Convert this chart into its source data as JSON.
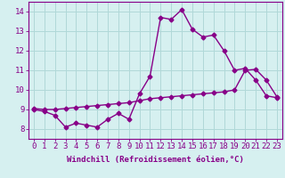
{
  "title": "",
  "xlabel": "Windchill (Refroidissement éolien,°C)",
  "ylabel": "",
  "bg_color": "#d6f0f0",
  "line_color": "#880088",
  "grid_color": "#b0d8d8",
  "xlim": [
    -0.5,
    23.5
  ],
  "ylim": [
    7.5,
    14.5
  ],
  "yticks": [
    8,
    9,
    10,
    11,
    12,
    13,
    14
  ],
  "xticks": [
    0,
    1,
    2,
    3,
    4,
    5,
    6,
    7,
    8,
    9,
    10,
    11,
    12,
    13,
    14,
    15,
    16,
    17,
    18,
    19,
    20,
    21,
    22,
    23
  ],
  "line1_x": [
    0,
    1,
    2,
    3,
    4,
    5,
    6,
    7,
    8,
    9,
    10,
    11,
    12,
    13,
    14,
    15,
    16,
    17,
    18,
    19,
    20,
    21,
    22,
    23
  ],
  "line1_y": [
    9.0,
    8.9,
    8.7,
    8.1,
    8.3,
    8.2,
    8.1,
    8.5,
    8.8,
    8.5,
    9.8,
    10.7,
    13.7,
    13.6,
    14.1,
    13.1,
    12.7,
    12.8,
    12.0,
    11.0,
    11.1,
    10.5,
    9.7,
    9.6
  ],
  "line2_x": [
    0,
    1,
    2,
    3,
    4,
    5,
    6,
    7,
    8,
    9,
    10,
    11,
    12,
    13,
    14,
    15,
    16,
    17,
    18,
    19,
    20,
    21,
    22,
    23
  ],
  "line2_y": [
    9.05,
    9.0,
    9.0,
    9.05,
    9.1,
    9.15,
    9.2,
    9.25,
    9.3,
    9.35,
    9.45,
    9.55,
    9.6,
    9.65,
    9.7,
    9.75,
    9.8,
    9.85,
    9.9,
    10.0,
    11.0,
    11.05,
    10.5,
    9.65
  ],
  "font_size_xlabel": 6.5,
  "font_size_ticks": 6.5,
  "marker": "D",
  "markersize": 2.5,
  "linewidth": 1.0
}
